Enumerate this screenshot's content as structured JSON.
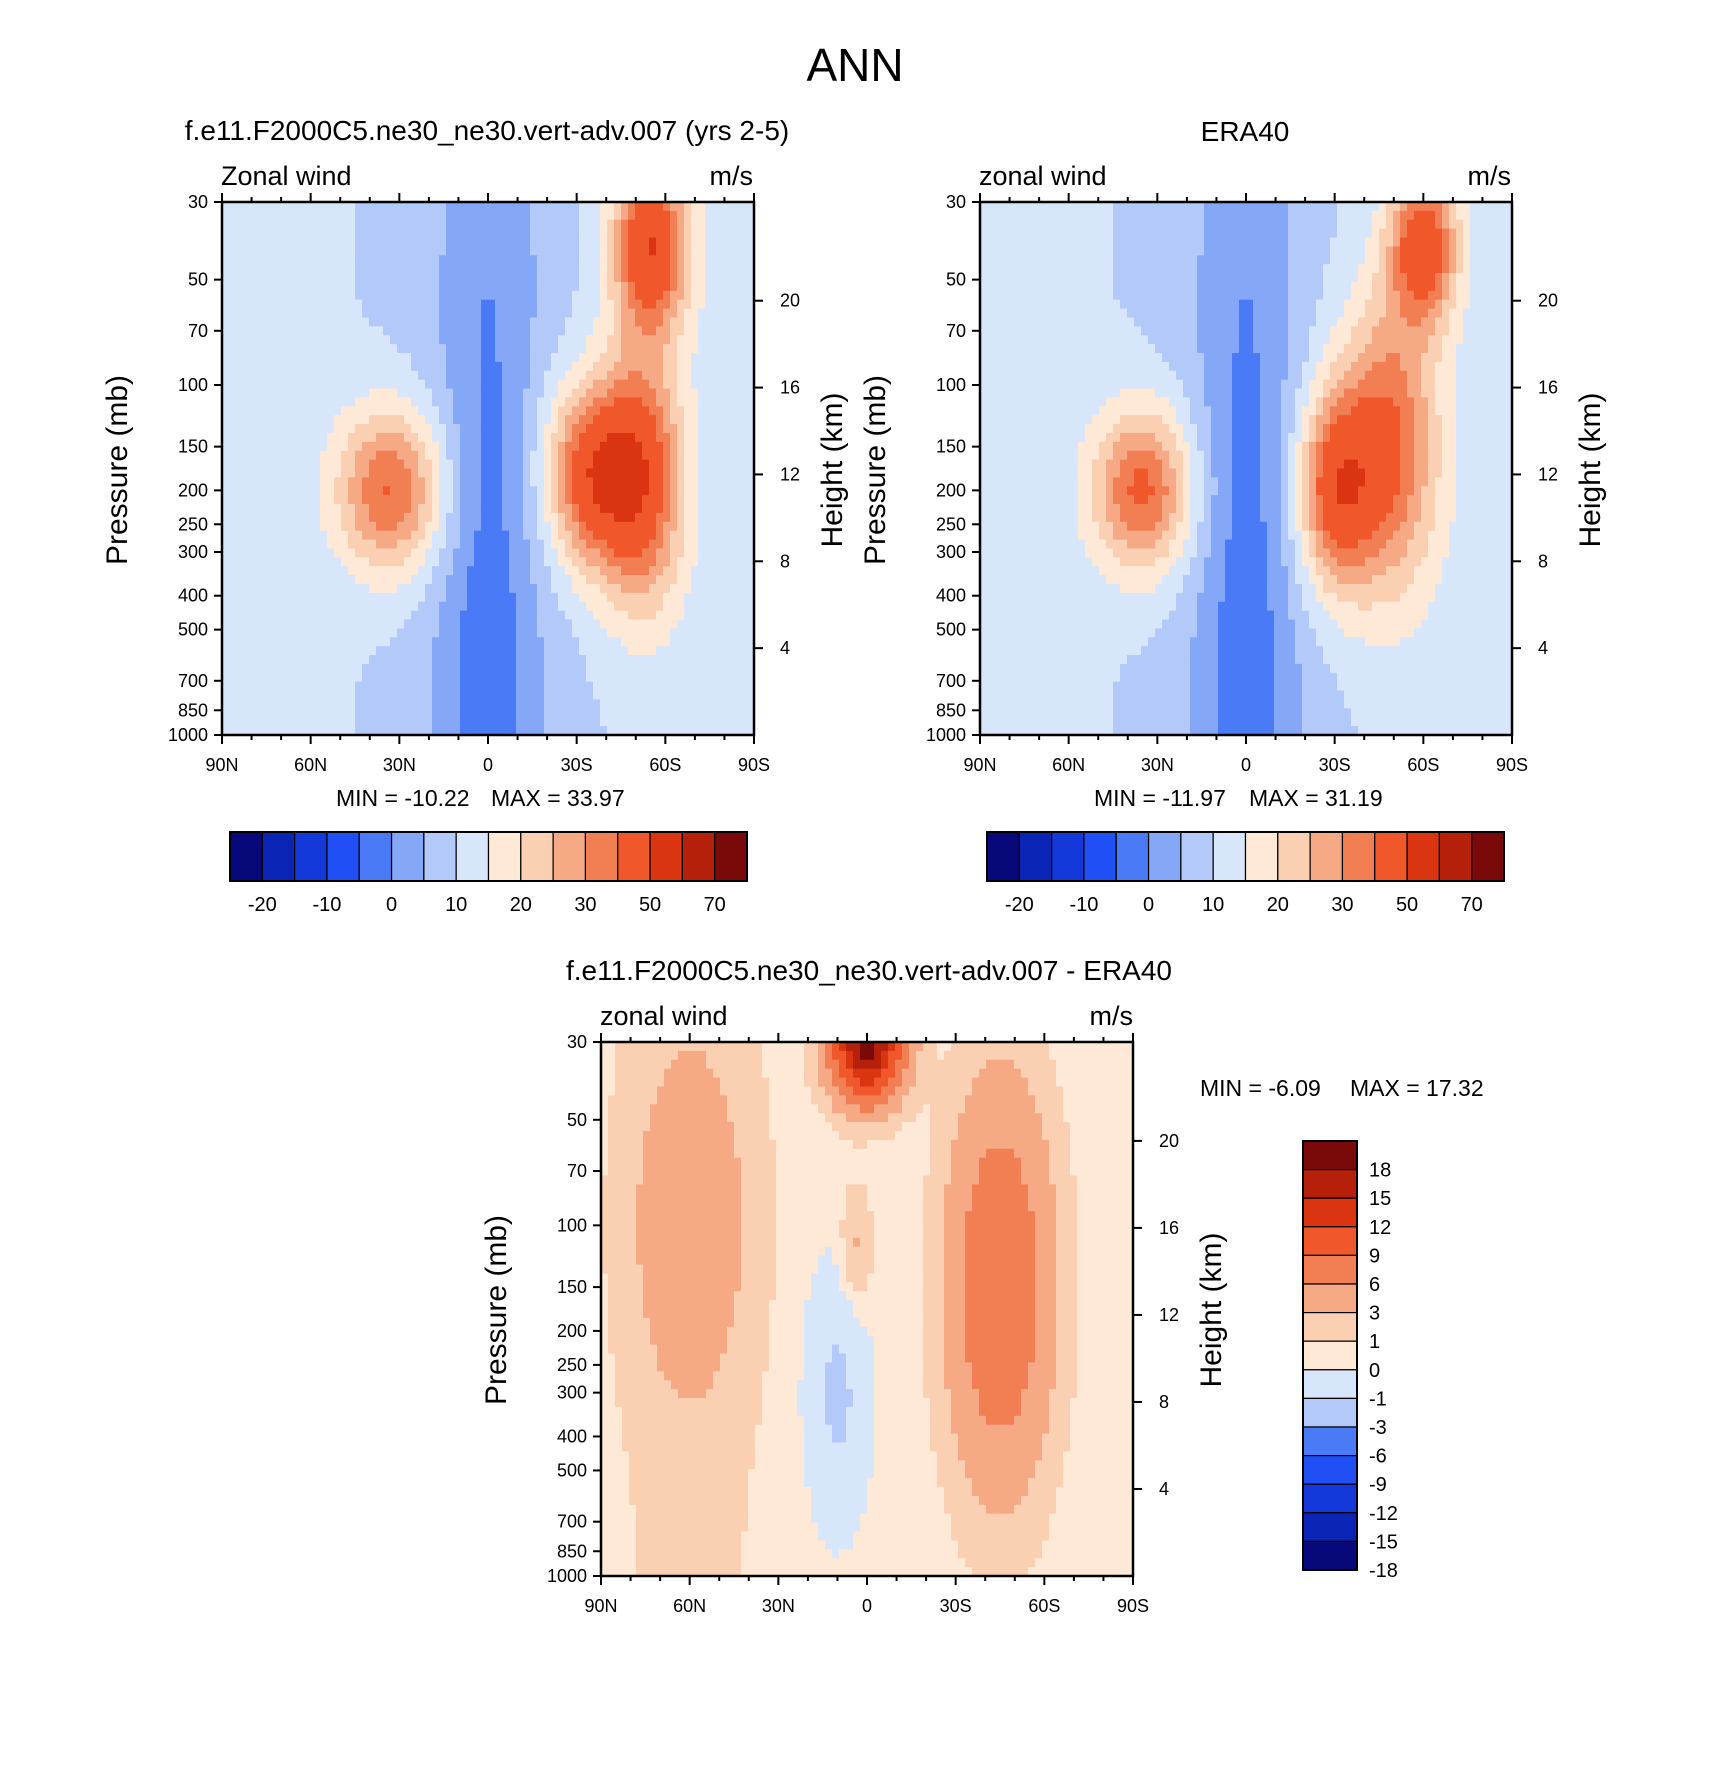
{
  "page_title": "ANN",
  "colors": {
    "cmap16": [
      "#08087a",
      "#0a24b5",
      "#1538da",
      "#1f4ff5",
      "#4a7af5",
      "#84a7f7",
      "#b3c9f9",
      "#d7e6fb",
      "#fde9d6",
      "#fbcfb1",
      "#f6a985",
      "#f27f53",
      "#f0582b",
      "#da3510",
      "#b5200b",
      "#7a0a0a"
    ],
    "cmap_diff": [
      "#08087a",
      "#0a24b5",
      "#1538da",
      "#1f4ff5",
      "#4a7af5",
      "#b3c9f9",
      "#d7e6fb",
      "#fde9d6",
      "#fbcfb1",
      "#f6a985",
      "#f27f53",
      "#f0582b",
      "#da3510",
      "#b5200b",
      "#7a0a0a"
    ]
  },
  "chart_data": [
    {
      "type": "heatmap",
      "id": "panel_model",
      "title": "f.e11.F2000C5.ne30_ne30.vert-adv.007 (yrs 2-5)",
      "left_label": "Zonal wind",
      "right_label": "m/s",
      "ylabel": "Pressure (mb)",
      "y2label": "Height (km)",
      "x_ticks": [
        "90N",
        "60N",
        "30N",
        "0",
        "30S",
        "60S",
        "90S"
      ],
      "xlim": [
        90,
        -90
      ],
      "y_ticks": [
        "30",
        "50",
        "70",
        "100",
        "150",
        "200",
        "250",
        "300",
        "400",
        "500",
        "700",
        "850",
        "1000"
      ],
      "y_tick_values": [
        30,
        50,
        70,
        100,
        150,
        200,
        250,
        300,
        400,
        500,
        700,
        850,
        1000
      ],
      "ylim": [
        30,
        1000
      ],
      "height_ticks": [
        "20",
        "16",
        "12",
        "8",
        "4"
      ],
      "height_tick_values": [
        20,
        16,
        12,
        8,
        4
      ],
      "min_text": "MIN = -10.22",
      "max_text": "MAX =  33.97",
      "min": -10.22,
      "max": 33.97,
      "colorbar_labels": [
        "-20",
        "-10",
        "0",
        "10",
        "20",
        "30",
        "50",
        "70"
      ],
      "colorbar_boundaries": [
        -25,
        -20,
        -15,
        -10,
        -5,
        0,
        5,
        10,
        15,
        20,
        25,
        30,
        40,
        50,
        60,
        70
      ],
      "features": [
        {
          "lat": 33,
          "p": 200,
          "peak": 26,
          "wlat": 13,
          "wlogp": 0.38
        },
        {
          "lat": -35,
          "p": 180,
          "peak": 30,
          "wlat": 11,
          "wlogp": 0.42
        },
        {
          "lat": -52,
          "p": 190,
          "peak": 28,
          "wlat": 10,
          "wlogp": 0.6
        },
        {
          "lat": -55,
          "p": 40,
          "peak": 34,
          "wlat": 9,
          "wlogp": 0.4
        }
      ]
    },
    {
      "type": "heatmap",
      "id": "panel_obs",
      "title": "ERA40",
      "left_label": "zonal wind",
      "right_label": "m/s",
      "ylabel": "Pressure (mb)",
      "y2label": "Height (km)",
      "x_ticks": [
        "90N",
        "60N",
        "30N",
        "0",
        "30S",
        "60S",
        "90S"
      ],
      "xlim": [
        90,
        -90
      ],
      "y_ticks": [
        "30",
        "50",
        "70",
        "100",
        "150",
        "200",
        "250",
        "300",
        "400",
        "500",
        "700",
        "850",
        "1000"
      ],
      "y_tick_values": [
        30,
        50,
        70,
        100,
        150,
        200,
        250,
        300,
        400,
        500,
        700,
        850,
        1000
      ],
      "ylim": [
        30,
        1000
      ],
      "height_ticks": [
        "20",
        "16",
        "12",
        "8",
        "4"
      ],
      "height_tick_values": [
        20,
        16,
        12,
        8,
        4
      ],
      "min_text": "MIN = -11.97",
      "max_text": "MAX =  31.19",
      "min": -11.97,
      "max": 31.19,
      "colorbar_labels": [
        "-20",
        "-10",
        "0",
        "10",
        "20",
        "30",
        "50",
        "70"
      ],
      "colorbar_boundaries": [
        -25,
        -20,
        -15,
        -10,
        -5,
        0,
        5,
        10,
        15,
        20,
        25,
        30,
        40,
        50,
        60,
        70
      ],
      "features": [
        {
          "lat": 35,
          "p": 200,
          "peak": 27,
          "wlat": 12,
          "wlogp": 0.38
        },
        {
          "lat": -30,
          "p": 200,
          "peak": 28,
          "wlat": 9,
          "wlogp": 0.45
        },
        {
          "lat": -48,
          "p": 150,
          "peak": 26,
          "wlat": 12,
          "wlogp": 0.7
        },
        {
          "lat": -60,
          "p": 40,
          "peak": 30,
          "wlat": 8,
          "wlogp": 0.35
        }
      ]
    },
    {
      "type": "heatmap",
      "id": "panel_diff",
      "title": "f.e11.F2000C5.ne30_ne30.vert-adv.007 - ERA40",
      "left_label": "zonal wind",
      "right_label": "m/s",
      "ylabel": "Pressure (mb)",
      "y2label": "Height (km)",
      "x_ticks": [
        "90N",
        "60N",
        "30N",
        "0",
        "30S",
        "60S",
        "90S"
      ],
      "xlim": [
        90,
        -90
      ],
      "y_ticks": [
        "30",
        "50",
        "70",
        "100",
        "150",
        "200",
        "250",
        "300",
        "400",
        "500",
        "700",
        "850",
        "1000"
      ],
      "y_tick_values": [
        30,
        50,
        70,
        100,
        150,
        200,
        250,
        300,
        400,
        500,
        700,
        850,
        1000
      ],
      "ylim": [
        30,
        1000
      ],
      "height_ticks": [
        "20",
        "16",
        "12",
        "8",
        "4"
      ],
      "height_tick_values": [
        20,
        16,
        12,
        8,
        4
      ],
      "min_text": "MIN =  -6.09",
      "max_text": "MAX =  17.32",
      "min": -6.09,
      "max": 17.32,
      "colorbar_labels": [
        "18",
        "15",
        "12",
        "9",
        "6",
        "3",
        "1",
        "0",
        "-1",
        "-3",
        "-6",
        "-9",
        "-12",
        "-15",
        "-18"
      ],
      "colorbar_boundaries": [
        -18,
        -15,
        -12,
        -9,
        -6,
        -3,
        -1,
        0,
        1,
        3,
        6,
        9,
        12,
        15,
        18
      ],
      "features": [
        {
          "lat": 0,
          "p": 30,
          "peak": 17,
          "wlat": 8,
          "wlogp": 0.25
        },
        {
          "lat": 4,
          "p": 120,
          "peak": 2,
          "wlat": 4,
          "wlogp": 0.3
        },
        {
          "lat": -45,
          "p": 150,
          "peak": 6,
          "wlat": 12,
          "wlogp": 0.9
        },
        {
          "lat": 60,
          "p": 100,
          "peak": 2,
          "wlat": 15,
          "wlogp": 0.8
        }
      ]
    }
  ]
}
